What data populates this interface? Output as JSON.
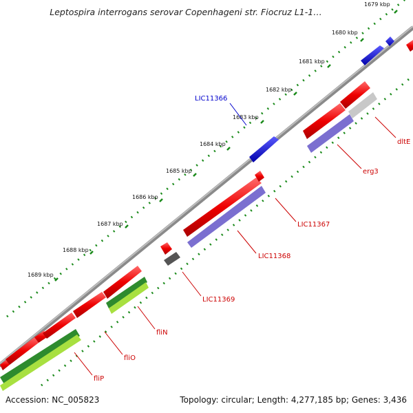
{
  "title": "Leptospira interrogans serovar Copenhageni str. Fiocruz L1-1…",
  "footer": {
    "accession": "Accession: NC_005823",
    "summary": "Topology: circular; Length: 4,277,185 bp; Genes: 3,436"
  },
  "ticks": [
    "1679 kbp",
    "1680 kbp",
    "1681 kbp",
    "1682 kbp",
    "1683 kbp",
    "1684 kbp",
    "1685 kbp",
    "1686 kbp",
    "1687 kbp",
    "1688 kbp",
    "1689 kbp"
  ],
  "gene_labels": {
    "LIC11366": "LIC11366",
    "dltE": "dltE",
    "erg3": "erg3",
    "LIC11367": "LIC11367",
    "LIC11368": "LIC11368",
    "LIC11369": "LIC11369",
    "fliN": "fliN",
    "fliO": "fliO",
    "fliP": "fliP"
  },
  "colors": {
    "backbone": "#8a8a8a",
    "forward_gene": "#0000ee",
    "reverse_gene": "#ee0000",
    "cds_purple": "#7b6fd0",
    "cds_green": "#2e8b2e",
    "cds_lime": "#a8e040",
    "cds_gray": "#555555",
    "cds_lightgray": "#c8c8c8",
    "tick_green": "#1a8a1a",
    "label_red": "#cc0000",
    "label_blue": "#0000cc"
  }
}
